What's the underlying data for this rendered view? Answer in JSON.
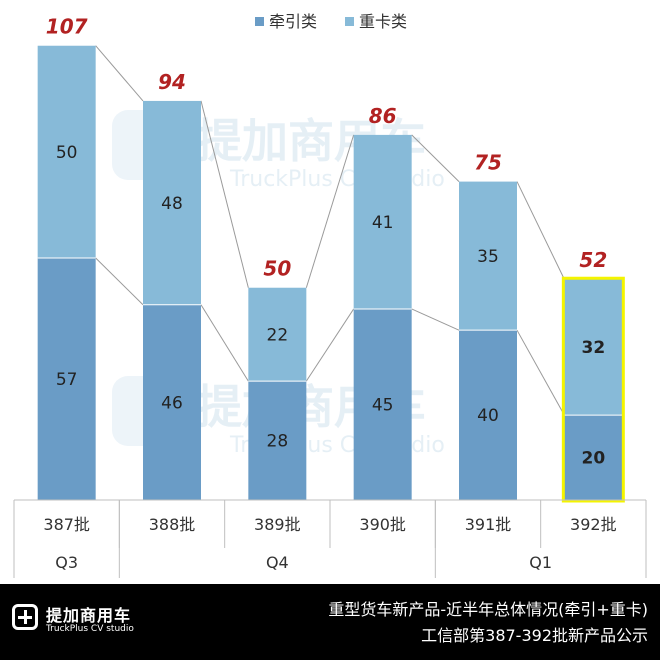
{
  "chart_data": {
    "type": "bar",
    "stacked": true,
    "categories": [
      "387批",
      "388批",
      "389批",
      "390批",
      "391批",
      "392批"
    ],
    "groups": [
      {
        "label": "Q3",
        "categories": [
          "387批"
        ]
      },
      {
        "label": "Q4",
        "categories": [
          "388批",
          "389批",
          "390批"
        ]
      },
      {
        "label": "Q1",
        "categories": [
          "391批",
          "392批"
        ]
      }
    ],
    "series": [
      {
        "name": "牵引类",
        "values": [
          57,
          46,
          28,
          45,
          40,
          20
        ],
        "color": "#6a9cc6"
      },
      {
        "name": "重卡类",
        "values": [
          50,
          48,
          22,
          41,
          35,
          32
        ],
        "color": "#87bad8"
      }
    ],
    "totals": [
      107,
      94,
      50,
      86,
      75,
      52
    ],
    "total_label_color": "#b22222",
    "highlight_category": "392批",
    "highlight_color": "#f4f400",
    "legend_position": "top",
    "ylim": [
      0,
      110
    ],
    "grid": false,
    "title": "",
    "xlabel": "",
    "ylabel": ""
  },
  "watermark": {
    "brand": "提加商用车",
    "sub": "TruckPlus CV studio"
  },
  "footer": {
    "logo_text": "提加商用车",
    "logo_sub": "TruckPlus CV studio",
    "caption_line1": "重型货车新产品-近半年总体情况(牵引+重卡)",
    "caption_line2": "工信部第387-392批新产品公示"
  }
}
